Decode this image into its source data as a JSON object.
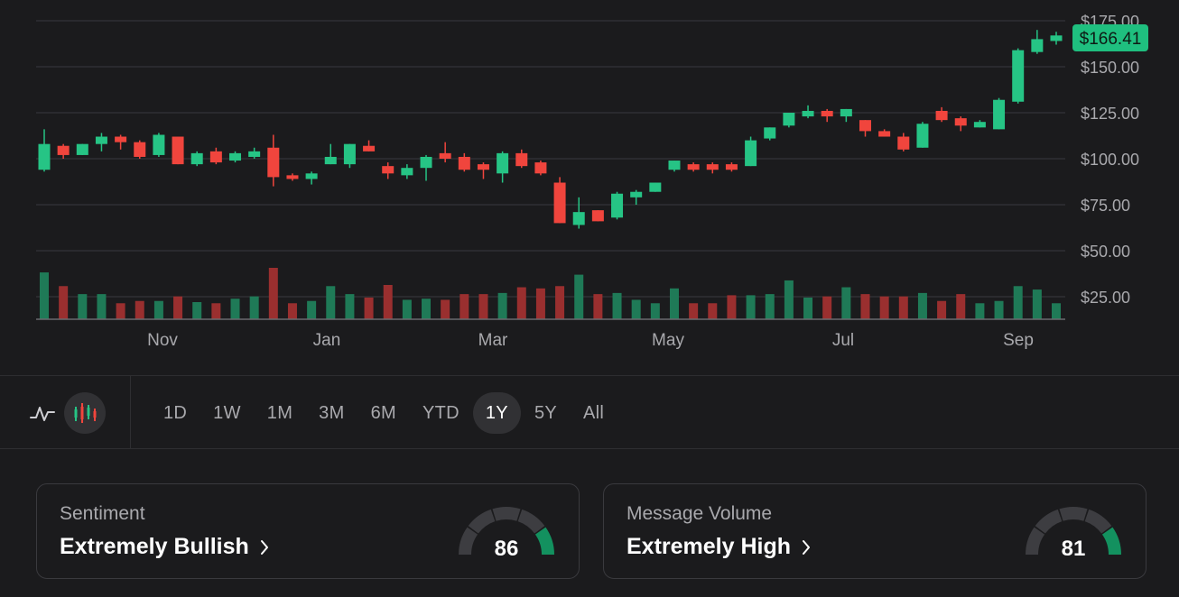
{
  "current_price": "$166.41",
  "chart_data": {
    "type": "candlestick",
    "x_tick_labels": [
      "Nov",
      "Jan",
      "Mar",
      "May",
      "Jul",
      "Sep"
    ],
    "y_tick_labels": [
      "$175.00",
      "$150.00",
      "$125.00",
      "$100.00",
      "$75.00",
      "$50.00",
      "$25.00"
    ],
    "y_ticks": [
      175,
      150,
      125,
      100,
      75,
      50,
      25
    ],
    "ylim": [
      18,
      175
    ],
    "candles": [
      {
        "o": 94,
        "c": 108,
        "h": 116,
        "l": 93
      },
      {
        "o": 107,
        "c": 102,
        "h": 108,
        "l": 100
      },
      {
        "o": 102,
        "c": 108,
        "h": 108,
        "l": 102
      },
      {
        "o": 108,
        "c": 112,
        "h": 114,
        "l": 104
      },
      {
        "o": 112,
        "c": 109,
        "h": 113,
        "l": 105
      },
      {
        "o": 109,
        "c": 101,
        "h": 110,
        "l": 100
      },
      {
        "o": 102,
        "c": 113,
        "h": 114,
        "l": 101
      },
      {
        "o": 112,
        "c": 97,
        "h": 112,
        "l": 97
      },
      {
        "o": 97,
        "c": 103,
        "h": 104,
        "l": 96
      },
      {
        "o": 104,
        "c": 98,
        "h": 106,
        "l": 97
      },
      {
        "o": 99,
        "c": 103,
        "h": 104,
        "l": 98
      },
      {
        "o": 101,
        "c": 104,
        "h": 106,
        "l": 100
      },
      {
        "o": 106,
        "c": 90,
        "h": 113,
        "l": 85
      },
      {
        "o": 91,
        "c": 89,
        "h": 92,
        "l": 88
      },
      {
        "o": 89,
        "c": 92,
        "h": 93,
        "l": 86
      },
      {
        "o": 97,
        "c": 101,
        "h": 108,
        "l": 97
      },
      {
        "o": 97,
        "c": 108,
        "h": 108,
        "l": 95
      },
      {
        "o": 107,
        "c": 104,
        "h": 110,
        "l": 104
      },
      {
        "o": 96,
        "c": 92,
        "h": 98,
        "l": 89
      },
      {
        "o": 91,
        "c": 95,
        "h": 97,
        "l": 89
      },
      {
        "o": 95,
        "c": 101,
        "h": 102,
        "l": 88
      },
      {
        "o": 103,
        "c": 100,
        "h": 109,
        "l": 98
      },
      {
        "o": 101,
        "c": 94,
        "h": 103,
        "l": 93
      },
      {
        "o": 97,
        "c": 94,
        "h": 98,
        "l": 89
      },
      {
        "o": 92,
        "c": 103,
        "h": 104,
        "l": 87
      },
      {
        "o": 103,
        "c": 96,
        "h": 105,
        "l": 95
      },
      {
        "o": 98,
        "c": 92,
        "h": 99,
        "l": 91
      },
      {
        "o": 87,
        "c": 65,
        "h": 90,
        "l": 65
      },
      {
        "o": 64,
        "c": 71,
        "h": 79,
        "l": 62
      },
      {
        "o": 72,
        "c": 66,
        "h": 72,
        "l": 66
      },
      {
        "o": 68,
        "c": 81,
        "h": 82,
        "l": 67
      },
      {
        "o": 79,
        "c": 82,
        "h": 83,
        "l": 75
      },
      {
        "o": 82,
        "c": 87,
        "h": 87,
        "l": 82
      },
      {
        "o": 94,
        "c": 99,
        "h": 99,
        "l": 93
      },
      {
        "o": 97,
        "c": 94,
        "h": 98,
        "l": 93
      },
      {
        "o": 97,
        "c": 94,
        "h": 98,
        "l": 92
      },
      {
        "o": 97,
        "c": 94,
        "h": 98,
        "l": 93
      },
      {
        "o": 96,
        "c": 110,
        "h": 112,
        "l": 96
      },
      {
        "o": 111,
        "c": 117,
        "h": 117,
        "l": 110
      },
      {
        "o": 118,
        "c": 125,
        "h": 125,
        "l": 117
      },
      {
        "o": 123,
        "c": 126,
        "h": 129,
        "l": 122
      },
      {
        "o": 126,
        "c": 123,
        "h": 127,
        "l": 120
      },
      {
        "o": 123,
        "c": 127,
        "h": 127,
        "l": 120
      },
      {
        "o": 121,
        "c": 115,
        "h": 121,
        "l": 112
      },
      {
        "o": 115,
        "c": 112,
        "h": 116,
        "l": 112
      },
      {
        "o": 112,
        "c": 105,
        "h": 114,
        "l": 104
      },
      {
        "o": 106,
        "c": 119,
        "h": 120,
        "l": 106
      },
      {
        "o": 126,
        "c": 121,
        "h": 128,
        "l": 120
      },
      {
        "o": 122,
        "c": 118,
        "h": 123,
        "l": 115
      },
      {
        "o": 117,
        "c": 120,
        "h": 121,
        "l": 117
      },
      {
        "o": 116,
        "c": 132,
        "h": 133,
        "l": 116
      },
      {
        "o": 131,
        "c": 159,
        "h": 160,
        "l": 130
      },
      {
        "o": 158,
        "c": 165,
        "h": 170,
        "l": 157
      },
      {
        "o": 164,
        "c": 167,
        "h": 169,
        "l": 162
      }
    ],
    "volumes": [
      41,
      29,
      22,
      22,
      14,
      16,
      16,
      20,
      15,
      14,
      18,
      20,
      45,
      14,
      16,
      29,
      22,
      19,
      30,
      17,
      18,
      17,
      22,
      22,
      23,
      28,
      27,
      29,
      39,
      22,
      23,
      17,
      14,
      27,
      14,
      14,
      21,
      21,
      22,
      34,
      19,
      20,
      28,
      22,
      20,
      20,
      23,
      16,
      22,
      14,
      16,
      29,
      26,
      14
    ]
  },
  "chart_type_toggle": {
    "line_icon": "line-chart-icon",
    "candle_icon": "candlestick-chart-icon"
  },
  "time_ranges": [
    "1D",
    "1W",
    "1M",
    "3M",
    "6M",
    "YTD",
    "1Y",
    "5Y",
    "All"
  ],
  "active_range": "1Y",
  "sentiment": {
    "label": "Sentiment",
    "value": "Extremely Bullish",
    "score": "86",
    "gauge_level": 86
  },
  "message_volume": {
    "label": "Message Volume",
    "value": "Extremely High",
    "score": "81",
    "gauge_level": 81
  },
  "colors": {
    "up": "#26c485",
    "down": "#f0453d",
    "vol_up": "#1f7a57",
    "vol_down": "#9a2f2f",
    "grid": "#3a3a3e",
    "axis_text": "#a9a9ad",
    "price_tag_bg": "#1fbf7f",
    "gauge_track": "#3d3d41",
    "gauge_fill": "#13915f"
  }
}
